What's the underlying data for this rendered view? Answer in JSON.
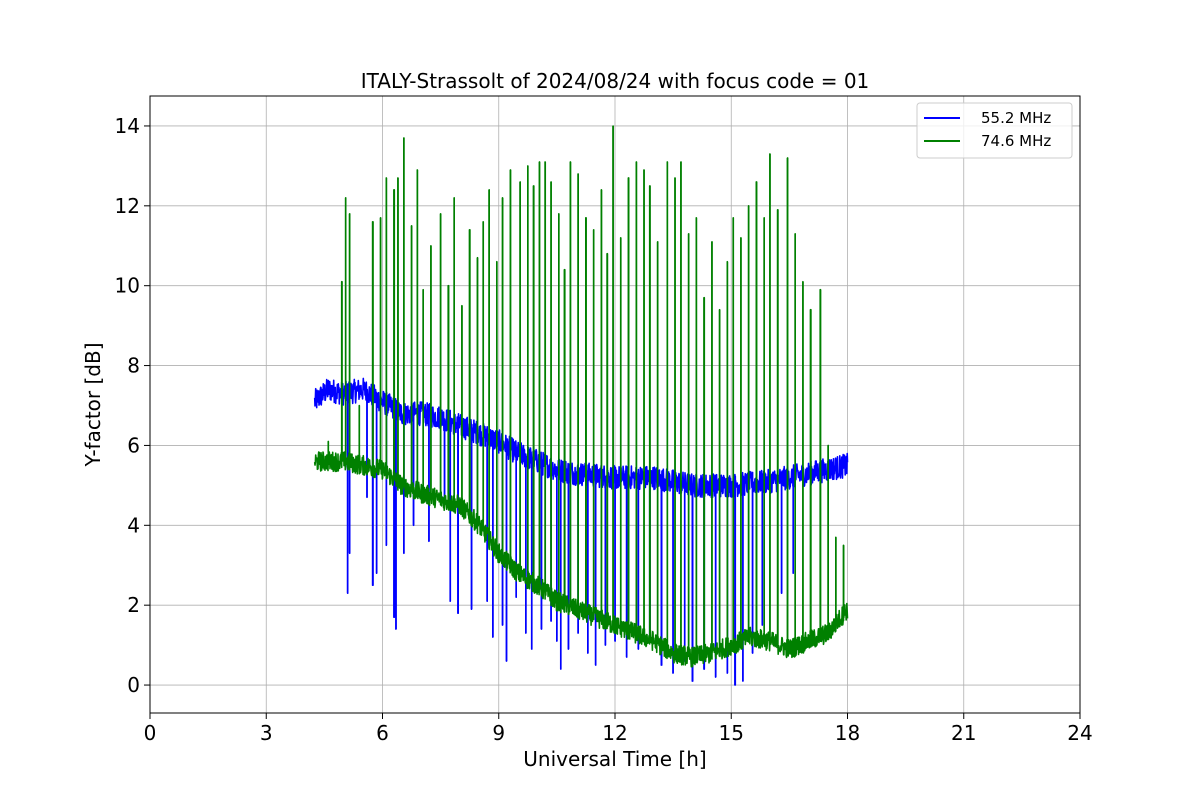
{
  "chart_data": {
    "type": "line",
    "title": "ITALY-Strassolt of 2024/08/24 with focus code = 01",
    "xlabel": "Universal Time [h]",
    "ylabel": "Y-factor [dB]",
    "xlim": [
      0,
      24
    ],
    "ylim": [
      -0.7,
      14.75
    ],
    "xticks": [
      0,
      3,
      6,
      9,
      12,
      15,
      18,
      21,
      24
    ],
    "yticks": [
      0,
      2,
      4,
      6,
      8,
      10,
      12,
      14
    ],
    "grid": true,
    "legend_position": "top-right",
    "series": [
      {
        "name": "55.2 MHz",
        "color": "#0000ff",
        "baseline": [
          [
            4.25,
            7.1
          ],
          [
            4.6,
            7.4
          ],
          [
            5.0,
            7.3
          ],
          [
            5.5,
            7.4
          ],
          [
            6.0,
            7.1
          ],
          [
            6.5,
            6.8
          ],
          [
            7.0,
            6.8
          ],
          [
            7.5,
            6.7
          ],
          [
            8.0,
            6.5
          ],
          [
            8.5,
            6.3
          ],
          [
            9.0,
            6.1
          ],
          [
            9.5,
            5.8
          ],
          [
            10.0,
            5.6
          ],
          [
            10.5,
            5.4
          ],
          [
            11.0,
            5.3
          ],
          [
            12.0,
            5.2
          ],
          [
            13.0,
            5.2
          ],
          [
            14.0,
            5.0
          ],
          [
            15.0,
            5.0
          ],
          [
            16.0,
            5.1
          ],
          [
            17.0,
            5.3
          ],
          [
            18.0,
            5.5
          ]
        ],
        "band_width": 0.6,
        "dips": [
          [
            5.1,
            2.3
          ],
          [
            5.15,
            3.3
          ],
          [
            5.6,
            4.7
          ],
          [
            5.75,
            2.5
          ],
          [
            5.85,
            2.8
          ],
          [
            6.1,
            3.5
          ],
          [
            6.3,
            1.7
          ],
          [
            6.35,
            1.4
          ],
          [
            6.55,
            3.3
          ],
          [
            6.8,
            4.0
          ],
          [
            7.2,
            3.6
          ],
          [
            7.6,
            4.6
          ],
          [
            7.75,
            2.1
          ],
          [
            7.95,
            1.8
          ],
          [
            8.3,
            1.9
          ],
          [
            8.7,
            2.1
          ],
          [
            8.85,
            1.2
          ],
          [
            9.1,
            1.5
          ],
          [
            9.2,
            0.6
          ],
          [
            9.45,
            2.2
          ],
          [
            9.7,
            1.3
          ],
          [
            9.85,
            0.9
          ],
          [
            10.1,
            1.4
          ],
          [
            10.35,
            1.6
          ],
          [
            10.5,
            1.1
          ],
          [
            10.6,
            0.4
          ],
          [
            10.8,
            0.9
          ],
          [
            11.05,
            1.3
          ],
          [
            11.3,
            0.8
          ],
          [
            11.5,
            0.5
          ],
          [
            11.75,
            1.0
          ],
          [
            12.0,
            1.1
          ],
          [
            12.3,
            0.7
          ],
          [
            12.6,
            0.9
          ],
          [
            12.9,
            1.2
          ],
          [
            13.2,
            0.5
          ],
          [
            13.5,
            0.3
          ],
          [
            13.8,
            0.6
          ],
          [
            14.0,
            0.1
          ],
          [
            14.3,
            0.4
          ],
          [
            14.6,
            0.2
          ],
          [
            14.9,
            0.3
          ],
          [
            15.1,
            0.0
          ],
          [
            15.3,
            0.1
          ],
          [
            15.55,
            0.8
          ],
          [
            15.8,
            1.5
          ],
          [
            16.3,
            2.3
          ],
          [
            16.6,
            2.8
          ]
        ]
      },
      {
        "name": "74.6 MHz",
        "color": "#008000",
        "baseline": [
          [
            4.25,
            5.6
          ],
          [
            5.0,
            5.6
          ],
          [
            6.0,
            5.4
          ],
          [
            6.5,
            5.0
          ],
          [
            7.0,
            4.8
          ],
          [
            8.0,
            4.5
          ],
          [
            8.5,
            4.0
          ],
          [
            9.0,
            3.3
          ],
          [
            9.5,
            2.8
          ],
          [
            10.0,
            2.5
          ],
          [
            10.5,
            2.1
          ],
          [
            11.0,
            1.9
          ],
          [
            11.5,
            1.7
          ],
          [
            12.0,
            1.5
          ],
          [
            12.5,
            1.3
          ],
          [
            13.0,
            1.1
          ],
          [
            13.5,
            0.8
          ],
          [
            14.0,
            0.7
          ],
          [
            14.5,
            0.8
          ],
          [
            15.0,
            1.0
          ],
          [
            15.5,
            1.2
          ],
          [
            16.0,
            1.1
          ],
          [
            16.5,
            0.9
          ],
          [
            17.0,
            1.1
          ],
          [
            17.5,
            1.3
          ],
          [
            18.0,
            1.9
          ]
        ],
        "band_width": 0.5,
        "spikes": [
          [
            4.6,
            6.1
          ],
          [
            4.95,
            10.1
          ],
          [
            5.05,
            12.2
          ],
          [
            5.15,
            11.8
          ],
          [
            5.4,
            7.0
          ],
          [
            5.75,
            11.6
          ],
          [
            5.95,
            11.7
          ],
          [
            6.1,
            12.7
          ],
          [
            6.3,
            12.4
          ],
          [
            6.4,
            12.7
          ],
          [
            6.55,
            13.7
          ],
          [
            6.75,
            11.5
          ],
          [
            6.9,
            12.9
          ],
          [
            7.05,
            9.9
          ],
          [
            7.25,
            11.0
          ],
          [
            7.5,
            11.8
          ],
          [
            7.7,
            10.0
          ],
          [
            7.85,
            12.2
          ],
          [
            8.05,
            9.5
          ],
          [
            8.25,
            11.4
          ],
          [
            8.45,
            10.7
          ],
          [
            8.6,
            11.6
          ],
          [
            8.75,
            12.4
          ],
          [
            8.95,
            10.6
          ],
          [
            9.1,
            12.2
          ],
          [
            9.3,
            12.9
          ],
          [
            9.55,
            12.6
          ],
          [
            9.75,
            13.0
          ],
          [
            9.9,
            12.5
          ],
          [
            10.05,
            13.1
          ],
          [
            10.2,
            13.1
          ],
          [
            10.35,
            12.6
          ],
          [
            10.55,
            11.8
          ],
          [
            10.7,
            10.4
          ],
          [
            10.85,
            13.1
          ],
          [
            11.05,
            12.8
          ],
          [
            11.25,
            11.7
          ],
          [
            11.45,
            11.4
          ],
          [
            11.65,
            12.4
          ],
          [
            11.8,
            10.8
          ],
          [
            11.95,
            14.0
          ],
          [
            12.15,
            11.2
          ],
          [
            12.35,
            12.7
          ],
          [
            12.55,
            13.1
          ],
          [
            12.75,
            12.9
          ],
          [
            12.9,
            12.5
          ],
          [
            13.1,
            11.1
          ],
          [
            13.35,
            13.1
          ],
          [
            13.55,
            12.7
          ],
          [
            13.7,
            13.1
          ],
          [
            13.9,
            11.3
          ],
          [
            14.1,
            11.7
          ],
          [
            14.3,
            9.7
          ],
          [
            14.5,
            11.1
          ],
          [
            14.7,
            9.4
          ],
          [
            14.9,
            10.6
          ],
          [
            15.05,
            11.7
          ],
          [
            15.25,
            11.2
          ],
          [
            15.45,
            12.0
          ],
          [
            15.65,
            12.6
          ],
          [
            15.85,
            11.7
          ],
          [
            16.0,
            13.3
          ],
          [
            16.2,
            11.9
          ],
          [
            16.45,
            13.2
          ],
          [
            16.65,
            11.3
          ],
          [
            16.85,
            10.1
          ],
          [
            17.05,
            9.4
          ],
          [
            17.3,
            9.9
          ],
          [
            17.5,
            6.0
          ],
          [
            17.7,
            3.7
          ],
          [
            17.9,
            3.5
          ]
        ]
      }
    ]
  }
}
